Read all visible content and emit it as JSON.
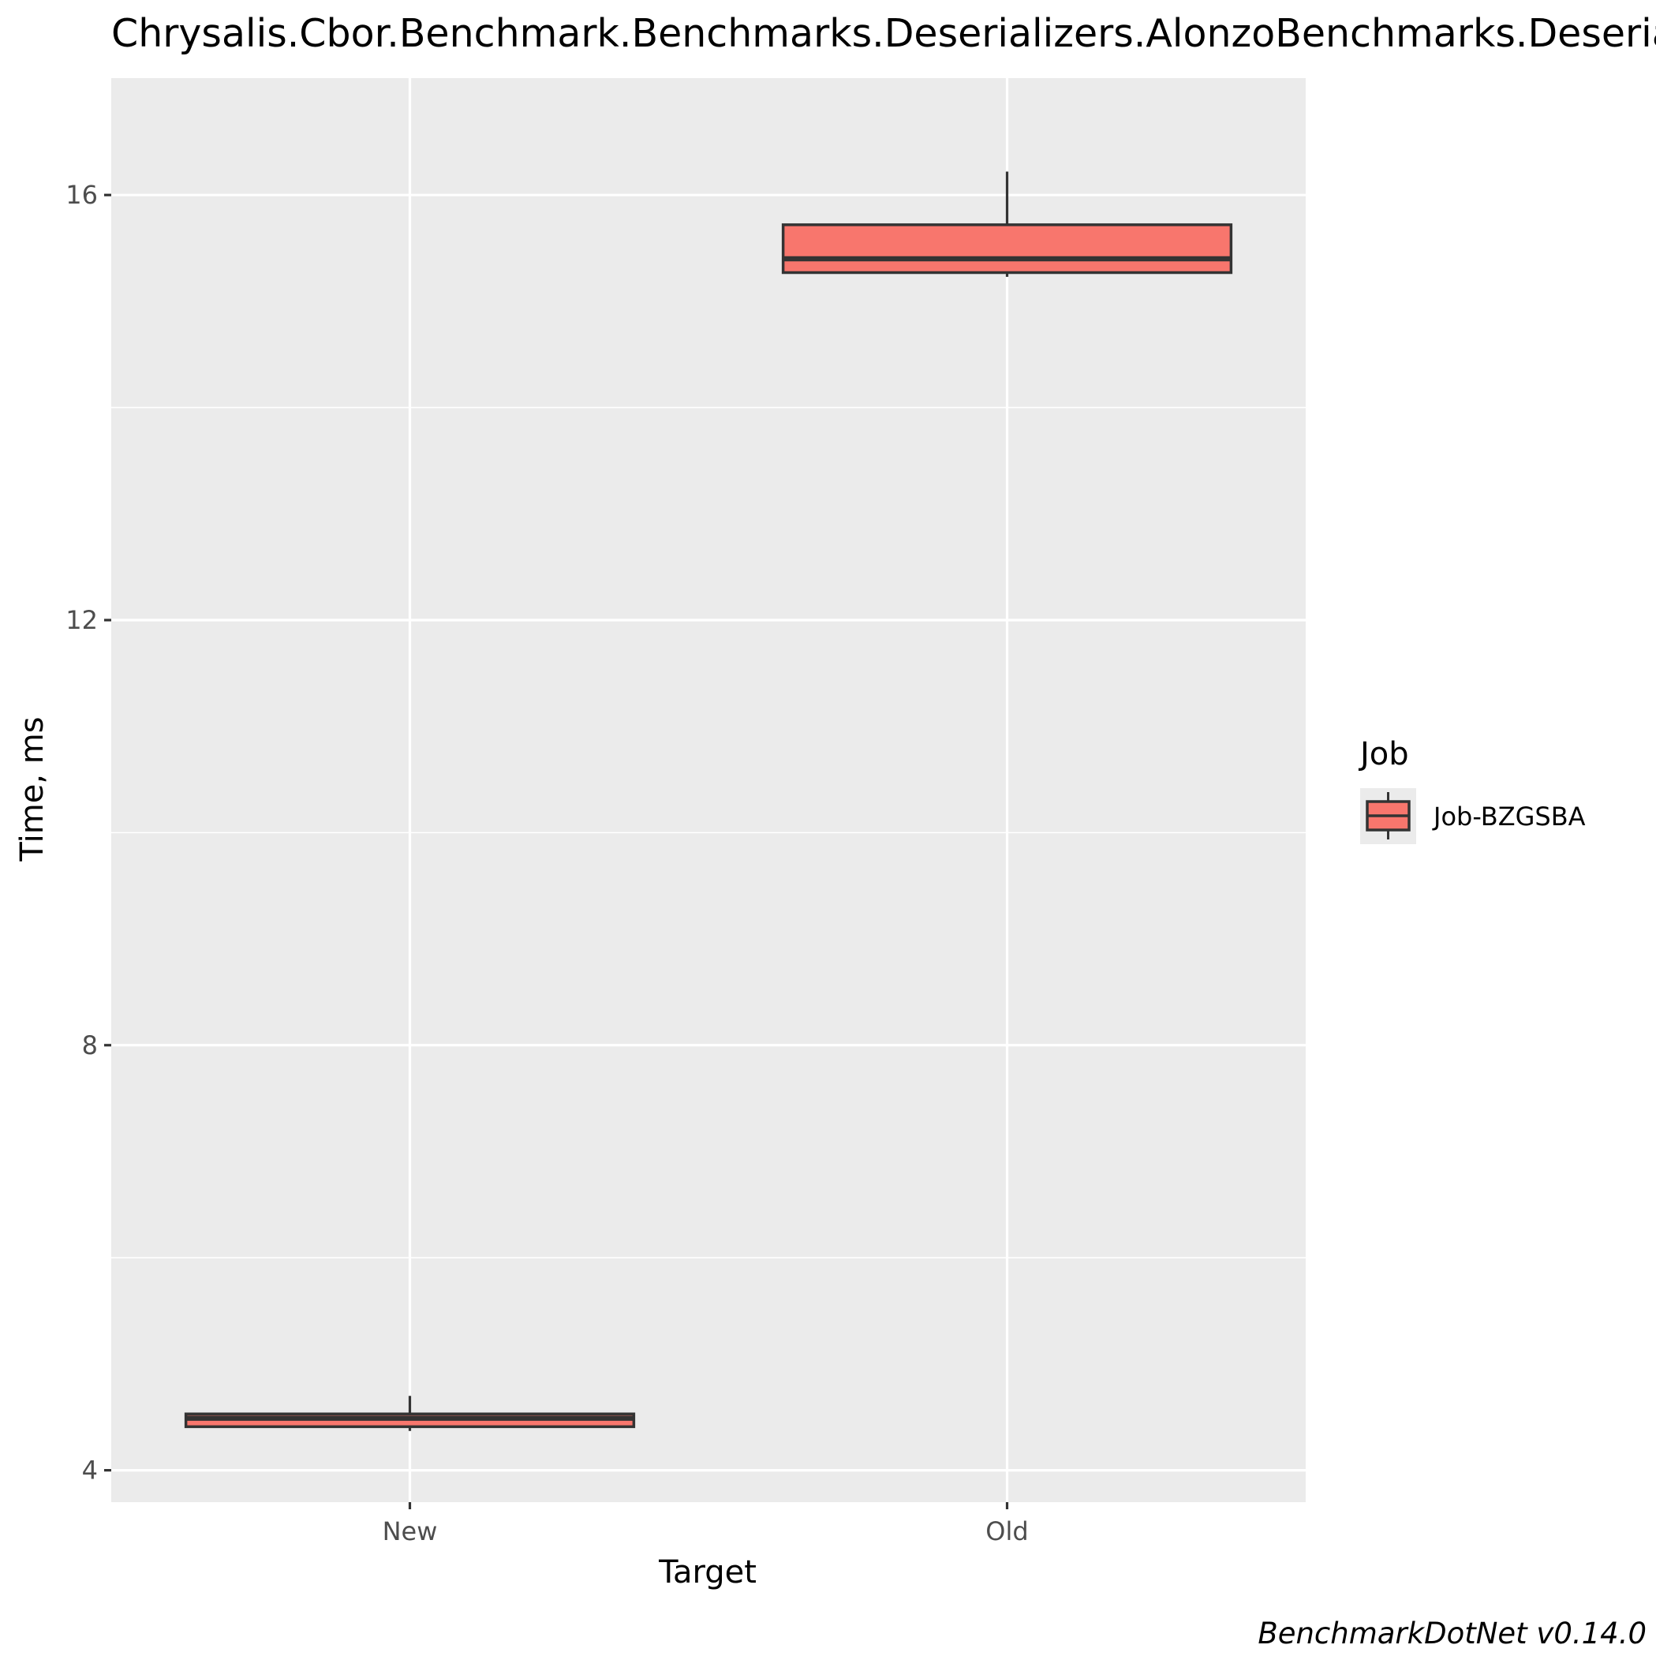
{
  "chart_data": {
    "type": "boxplot",
    "title": "Chrysalis.Cbor.Benchmark.Benchmarks.Deserializers.AlonzoBenchmarks.Deserialize",
    "xlabel": "Target",
    "ylabel": "Time, ms",
    "categories": [
      "New",
      "Old"
    ],
    "ylim": [
      3.7,
      17.1
    ],
    "yticks": [
      4,
      8,
      12,
      16
    ],
    "grid": true,
    "legend": {
      "title": "Job",
      "position": "right",
      "entries": [
        "Job-BZGSBA"
      ]
    },
    "series": [
      {
        "name": "Job-BZGSBA",
        "color": "#F8766D",
        "boxes": [
          {
            "category": "New",
            "whisker_low": 4.37,
            "q1": 4.41,
            "median": 4.49,
            "q3": 4.53,
            "whisker_high": 4.7
          },
          {
            "category": "Old",
            "whisker_low": 15.23,
            "q1": 15.27,
            "median": 15.4,
            "q3": 15.72,
            "whisker_high": 16.22
          }
        ]
      }
    ],
    "caption": "BenchmarkDotNet v0.14.0"
  },
  "colors": {
    "panel_background": "#EBEBEB",
    "grid_major": "#FFFFFF",
    "box_fill": "#F8766D",
    "box_outline": "#333333"
  }
}
